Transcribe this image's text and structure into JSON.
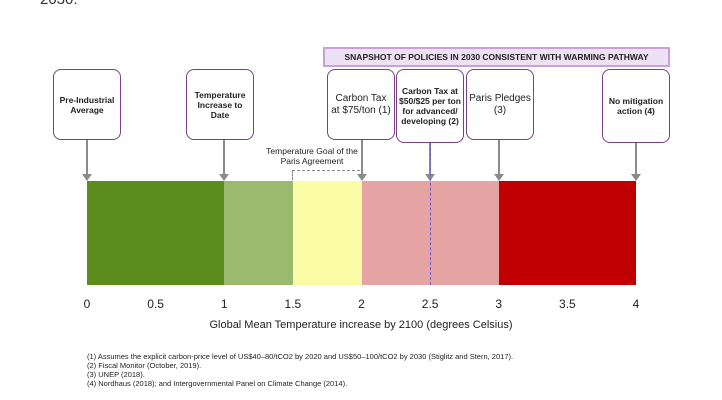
{
  "top_fragment": "2030.",
  "banner": "SNAPSHOT OF POLICIES IN 2030 CONSISTENT WITH WARMING PATHWAY",
  "callouts": {
    "preindustrial": "Pre-Industrial Average",
    "temp_to_date": "Temperature Increase to Date",
    "carbon_tax_75": "Carbon Tax at $75/ton (1)",
    "carbon_tax_50": "Carbon Tax at $50/$25 per ton for advanced/ developing (2)",
    "paris_pledges": "Paris Pledges (3)",
    "no_mitigation": "No mitigation action (4)"
  },
  "goal_label": "Temperature Goal of the Paris Agreement",
  "chart_data": {
    "type": "bar",
    "segments": [
      {
        "from": 0,
        "to": 1,
        "color": "#5b8c1c"
      },
      {
        "from": 1,
        "to": 1.5,
        "color": "#9bba6e"
      },
      {
        "from": 1.5,
        "to": 2,
        "color": "#fdfca6"
      },
      {
        "from": 2,
        "to": 3,
        "color": "#e6a3a3"
      },
      {
        "from": 3,
        "to": 4,
        "color": "#c00000"
      }
    ],
    "markers": [
      {
        "name": "preindustrial",
        "x": 0
      },
      {
        "name": "temp_to_date",
        "x": 1
      },
      {
        "name": "carbon_tax_75",
        "x": 2
      },
      {
        "name": "carbon_tax_50",
        "x": 2.5
      },
      {
        "name": "paris_pledges",
        "x": 3
      },
      {
        "name": "no_mitigation",
        "x": 4
      }
    ],
    "xticks": [
      "0",
      "0.5",
      "1",
      "1.5",
      "2",
      "2.5",
      "3",
      "3.5",
      "4"
    ],
    "xlim": [
      0,
      4
    ],
    "xlabel": "Global Mean Temperature increase by 2100 (degrees Celsius)"
  },
  "footnotes": [
    "(1) Assumes the explicit carbon-price level of US$40–80/tCO2 by 2020 and US$50–100/tCO2 by 2030 (Stiglitz and Stern, 2017).",
    "(2) Fiscal Monitor (October, 2019).",
    "(3) UNEP (2018).",
    "(4) Nordhaus (2018); and Intergovernmental Panel on Climate Change (2014)."
  ]
}
